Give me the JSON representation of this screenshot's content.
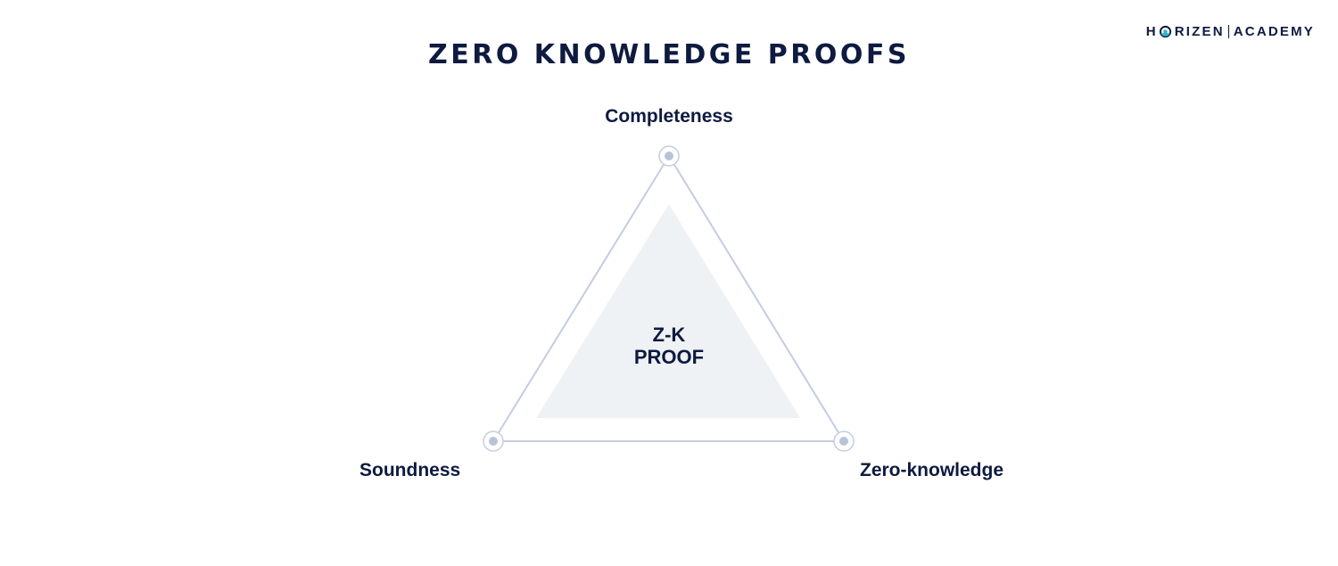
{
  "title": "ZERO KNOWLEDGE PROOFS",
  "logo": {
    "brand_before_mark": "H",
    "brand_after_mark": "RIZEN",
    "suffix": "ACADEMY",
    "mark_icon": "horizen-o-icon",
    "mark_colors": [
      "#0e1a3f",
      "#2fb7c9"
    ]
  },
  "diagram": {
    "vertices": {
      "top": "Completeness",
      "bottom_left": "Soundness",
      "bottom_right": "Zero-knowledge"
    },
    "center": {
      "line1": "Z-K",
      "line2": "PROOF"
    },
    "colors": {
      "text": "#0e1a3f",
      "outline": "#c3cde1",
      "node_dot": "#b8c3d9",
      "inner_fill": "#eff2f4"
    }
  }
}
